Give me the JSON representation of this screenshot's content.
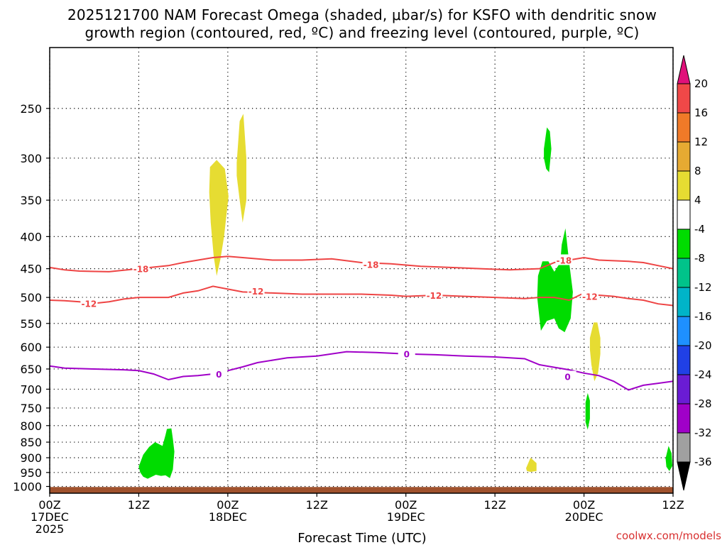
{
  "title": {
    "line1": "2025121700 NAM Forecast Omega (shaded, μbar/s) for KSFO with dendritic snow",
    "line2": "growth region (contoured, red, ºC) and freezing level (contoured, purple, ºC)"
  },
  "credit": "coolwx.com/models",
  "chart_data": {
    "type": "contour",
    "xlabel": "Forecast Time (UTC)",
    "x_range_hours": [
      0,
      84
    ],
    "y_range_hPa": [
      200,
      1025
    ],
    "y_scale": "log-pressure (inverted)",
    "grid": "dotted",
    "x_ticks": [
      {
        "hour": 0,
        "l1": "00Z",
        "l2": "17DEC",
        "l3": "2025"
      },
      {
        "hour": 12,
        "l1": "12Z",
        "l2": "",
        "l3": ""
      },
      {
        "hour": 24,
        "l1": "00Z",
        "l2": "18DEC",
        "l3": ""
      },
      {
        "hour": 36,
        "l1": "12Z",
        "l2": "",
        "l3": ""
      },
      {
        "hour": 48,
        "l1": "00Z",
        "l2": "19DEC",
        "l3": ""
      },
      {
        "hour": 60,
        "l1": "12Z",
        "l2": "",
        "l3": ""
      },
      {
        "hour": 72,
        "l1": "00Z",
        "l2": "20DEC",
        "l3": ""
      },
      {
        "hour": 84,
        "l1": "12Z",
        "l2": "",
        "l3": ""
      }
    ],
    "y_ticks": [
      {
        "p": 250,
        "label": "250"
      },
      {
        "p": 300,
        "label": "300"
      },
      {
        "p": 350,
        "label": "350"
      },
      {
        "p": 400,
        "label": "400"
      },
      {
        "p": 450,
        "label": "450"
      },
      {
        "p": 500,
        "label": "500"
      },
      {
        "p": 550,
        "label": "550"
      },
      {
        "p": 600,
        "label": "600"
      },
      {
        "p": 650,
        "label": "650"
      },
      {
        "p": 700,
        "label": "700"
      },
      {
        "p": 750,
        "label": "750"
      },
      {
        "p": 800,
        "label": "800"
      },
      {
        "p": 850,
        "label": "850"
      },
      {
        "p": 900,
        "label": "900"
      },
      {
        "p": 950,
        "label": "950"
      },
      {
        "p": 1000,
        "label": "1000"
      }
    ],
    "contours": [
      {
        "name": "-18",
        "color": "#ee4444",
        "points": [
          [
            0,
            448
          ],
          [
            2,
            452
          ],
          [
            4,
            454
          ],
          [
            8,
            455
          ],
          [
            12,
            450
          ],
          [
            16,
            445
          ],
          [
            18,
            440
          ],
          [
            20,
            436
          ],
          [
            22,
            432
          ],
          [
            24,
            430
          ],
          [
            26,
            432
          ],
          [
            30,
            436
          ],
          [
            34,
            436
          ],
          [
            38,
            434
          ],
          [
            42,
            440
          ],
          [
            46,
            442
          ],
          [
            50,
            446
          ],
          [
            54,
            448
          ],
          [
            58,
            450
          ],
          [
            62,
            452
          ],
          [
            66,
            450
          ],
          [
            68,
            440
          ],
          [
            70,
            436
          ],
          [
            72,
            432
          ],
          [
            74,
            436
          ],
          [
            78,
            438
          ],
          [
            80,
            440
          ],
          [
            82,
            445
          ],
          [
            84,
            450
          ]
        ],
        "labels": [
          {
            "x": 12.3,
            "p": 450
          },
          {
            "x": 43.3,
            "p": 443
          },
          {
            "x": 69.3,
            "p": 436
          }
        ]
      },
      {
        "name": "-12",
        "color": "#ee4444",
        "points": [
          [
            0,
            505
          ],
          [
            2,
            506
          ],
          [
            4,
            508
          ],
          [
            6,
            511
          ],
          [
            8,
            508
          ],
          [
            10,
            503
          ],
          [
            12,
            500
          ],
          [
            16,
            500
          ],
          [
            18,
            492
          ],
          [
            20,
            488
          ],
          [
            22,
            480
          ],
          [
            24,
            485
          ],
          [
            26,
            490
          ],
          [
            30,
            492
          ],
          [
            34,
            494
          ],
          [
            38,
            494
          ],
          [
            42,
            494
          ],
          [
            46,
            496
          ],
          [
            48,
            498
          ],
          [
            52,
            496
          ],
          [
            56,
            498
          ],
          [
            60,
            500
          ],
          [
            64,
            502
          ],
          [
            66,
            500
          ],
          [
            68,
            500
          ],
          [
            70,
            505
          ],
          [
            72,
            492
          ],
          [
            74,
            496
          ],
          [
            76,
            498
          ],
          [
            78,
            502
          ],
          [
            80,
            505
          ],
          [
            82,
            512
          ],
          [
            84,
            515
          ]
        ],
        "labels": [
          {
            "x": 5.3,
            "p": 511
          },
          {
            "x": 27.8,
            "p": 488
          },
          {
            "x": 51.8,
            "p": 496
          },
          {
            "x": 72.8,
            "p": 498
          }
        ]
      },
      {
        "name": "0",
        "color": "#a000c8",
        "points": [
          [
            0,
            643
          ],
          [
            2,
            648
          ],
          [
            6,
            650
          ],
          [
            10,
            652
          ],
          [
            12,
            654
          ],
          [
            14,
            662
          ],
          [
            16,
            676
          ],
          [
            18,
            668
          ],
          [
            20,
            666
          ],
          [
            22,
            662
          ],
          [
            24,
            654
          ],
          [
            26,
            645
          ],
          [
            28,
            635
          ],
          [
            32,
            624
          ],
          [
            36,
            620
          ],
          [
            40,
            610
          ],
          [
            44,
            612
          ],
          [
            48,
            615
          ],
          [
            52,
            617
          ],
          [
            56,
            620
          ],
          [
            60,
            622
          ],
          [
            64,
            626
          ],
          [
            66,
            640
          ],
          [
            68,
            646
          ],
          [
            70,
            652
          ],
          [
            72,
            660
          ],
          [
            74,
            666
          ],
          [
            76,
            680
          ],
          [
            78,
            702
          ],
          [
            80,
            690
          ],
          [
            82,
            685
          ],
          [
            84,
            680
          ]
        ],
        "labels": [
          {
            "x": 22.8,
            "p": 662
          },
          {
            "x": 48.1,
            "p": 615
          },
          {
            "x": 69.8,
            "p": 668
          }
        ]
      }
    ],
    "shaded_regions": [
      {
        "color": "#e6dc32",
        "points": [
          [
            21.6,
            310
          ],
          [
            22.5,
            302
          ],
          [
            23.6,
            312
          ],
          [
            24.1,
            345
          ],
          [
            23.5,
            400
          ],
          [
            23.0,
            435
          ],
          [
            22.5,
            462
          ],
          [
            22.1,
            430
          ],
          [
            21.7,
            380
          ],
          [
            21.5,
            340
          ]
        ]
      },
      {
        "color": "#e6dc32",
        "points": [
          [
            25.2,
            305
          ],
          [
            25.6,
            262
          ],
          [
            26.1,
            255
          ],
          [
            26.5,
            300
          ],
          [
            26.5,
            350
          ],
          [
            26.0,
            380
          ],
          [
            25.6,
            350
          ],
          [
            25.2,
            320
          ]
        ]
      },
      {
        "color": "#e6dc32",
        "points": [
          [
            72.8,
            580
          ],
          [
            73.3,
            548
          ],
          [
            73.8,
            548
          ],
          [
            74.2,
            580
          ],
          [
            74.2,
            615
          ],
          [
            73.9,
            660
          ],
          [
            73.4,
            680
          ],
          [
            73.0,
            640
          ],
          [
            72.8,
            605
          ]
        ]
      },
      {
        "color": "#e6dc32",
        "points": [
          [
            64.2,
            935
          ],
          [
            64.8,
            900
          ],
          [
            65.6,
            918
          ],
          [
            65.6,
            945
          ],
          [
            64.8,
            948
          ],
          [
            64.3,
            945
          ]
        ]
      },
      {
        "color": "#00dc00",
        "points": [
          [
            66.6,
            290
          ],
          [
            67.0,
            268
          ],
          [
            67.4,
            272
          ],
          [
            67.6,
            290
          ],
          [
            67.3,
            316
          ],
          [
            66.9,
            312
          ],
          [
            66.6,
            300
          ]
        ]
      },
      {
        "color": "#00dc00",
        "points": [
          [
            65.8,
            462
          ],
          [
            66.4,
            438
          ],
          [
            67.2,
            438
          ],
          [
            68.0,
            455
          ],
          [
            68.8,
            440
          ],
          [
            69.0,
            412
          ],
          [
            69.5,
            388
          ],
          [
            70.0,
            440
          ],
          [
            70.5,
            490
          ],
          [
            70.2,
            540
          ],
          [
            69.4,
            568
          ],
          [
            68.6,
            560
          ],
          [
            68.0,
            540
          ],
          [
            67.0,
            545
          ],
          [
            66.2,
            565
          ],
          [
            66.0,
            540
          ],
          [
            65.7,
            500
          ]
        ]
      },
      {
        "color": "#00dc00",
        "points": [
          [
            72.2,
            735
          ],
          [
            72.5,
            710
          ],
          [
            72.8,
            730
          ],
          [
            72.8,
            780
          ],
          [
            72.5,
            812
          ],
          [
            72.2,
            790
          ]
        ]
      },
      {
        "color": "#00dc00",
        "points": [
          [
            83.0,
            902
          ],
          [
            83.4,
            862
          ],
          [
            83.8,
            885
          ],
          [
            83.9,
            928
          ],
          [
            83.5,
            945
          ],
          [
            83.1,
            930
          ]
        ]
      },
      {
        "color": "#00dc00",
        "points": [
          [
            12.0,
            930
          ],
          [
            12.6,
            890
          ],
          [
            13.4,
            865
          ],
          [
            14.2,
            850
          ],
          [
            15.2,
            862
          ],
          [
            15.6,
            828
          ],
          [
            15.8,
            810
          ],
          [
            16.4,
            808
          ],
          [
            16.6,
            840
          ],
          [
            16.8,
            880
          ],
          [
            16.6,
            940
          ],
          [
            16.2,
            970
          ],
          [
            15.6,
            960
          ],
          [
            15.0,
            962
          ],
          [
            14.3,
            958
          ],
          [
            13.2,
            972
          ],
          [
            12.6,
            965
          ],
          [
            12.2,
            950
          ]
        ]
      }
    ],
    "ground_color": "#a0522d",
    "colorbar": {
      "labels": [
        "20",
        "16",
        "12",
        "8",
        "4",
        "-4",
        "-8",
        "-12",
        "-16",
        "-20",
        "-24",
        "-28",
        "-32",
        "-36"
      ],
      "colors": [
        "#e0107a",
        "#f04848",
        "#f07a28",
        "#e6aa32",
        "#e6dc32",
        "#ffffff",
        "#00dc00",
        "#00c38a",
        "#00b4c8",
        "#1e90ff",
        "#2040e6",
        "#6a1cd4",
        "#a000c8",
        "#a0a0a0",
        "#000000"
      ]
    }
  }
}
